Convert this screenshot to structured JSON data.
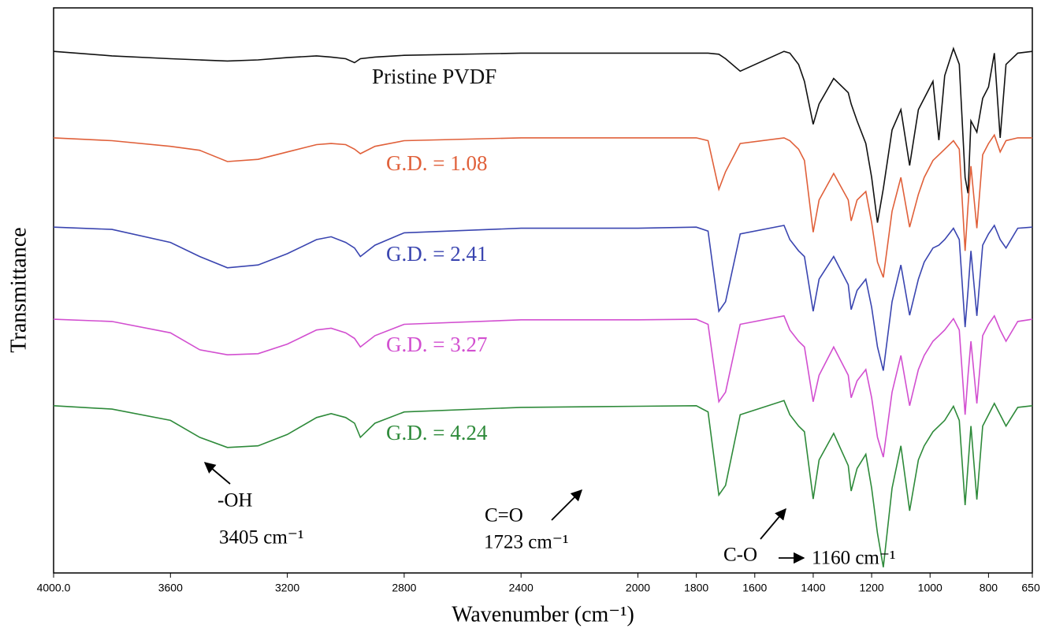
{
  "chart_data": {
    "type": "line",
    "xlabel": "Wavenumber (cm⁻¹)",
    "ylabel": "Transmittance",
    "xlim": [
      4000,
      650
    ],
    "ylim": [
      0,
      100
    ],
    "xticks": [
      {
        "value": 4000,
        "label": "4000.0"
      },
      3600,
      3200,
      2800,
      2400,
      2000,
      1800,
      1600,
      1400,
      1200,
      1000,
      800,
      {
        "value": 650,
        "label": "650."
      }
    ],
    "x": [
      4000,
      3800,
      3600,
      3500,
      3405,
      3300,
      3200,
      3100,
      3050,
      3000,
      2970,
      2950,
      2900,
      2800,
      2400,
      2000,
      1800,
      1760,
      1723,
      1700,
      1650,
      1500,
      1480,
      1450,
      1430,
      1400,
      1380,
      1330,
      1280,
      1270,
      1250,
      1220,
      1200,
      1180,
      1160,
      1130,
      1100,
      1070,
      1040,
      1020,
      990,
      970,
      950,
      920,
      900,
      880,
      870,
      860,
      840,
      820,
      800,
      780,
      760,
      740,
      700,
      650
    ],
    "series": [
      {
        "name": "Pristine PVDF",
        "color": "#111111",
        "values": [
          92.3,
          91.5,
          91,
          90.8,
          90.6,
          90.8,
          91.2,
          91.5,
          91.3,
          91,
          90.3,
          91,
          91.3,
          91.6,
          92,
          92,
          92,
          92,
          91.8,
          91,
          88.8,
          92.3,
          92,
          90,
          87,
          79.4,
          83,
          87.5,
          85,
          83,
          80,
          76,
          70,
          62,
          68,
          78.4,
          82,
          72.1,
          82,
          84,
          87,
          76.6,
          88,
          92.8,
          90,
          70,
          67.2,
          80,
          78,
          84,
          86,
          92,
          77,
          90,
          92,
          92.3
        ]
      },
      {
        "name": "G.D. = 1.08",
        "color": "#e0603a",
        "values": [
          77,
          76.5,
          75.5,
          74.8,
          72.8,
          73.2,
          74.5,
          75.8,
          76,
          75.8,
          75,
          74.2,
          75.5,
          76.5,
          77,
          77,
          77,
          76.5,
          67.9,
          71,
          76,
          77,
          76.5,
          75,
          73,
          60.3,
          66,
          70.7,
          66,
          62.3,
          66,
          67.5,
          62,
          55,
          52.3,
          64,
          70,
          61.2,
          67,
          70,
          73,
          74,
          75,
          76.5,
          75,
          57,
          65,
          72,
          61,
          74,
          76,
          77.5,
          74.5,
          76.5,
          77,
          77
        ]
      },
      {
        "name": "G.D. = 2.41",
        "color": "#3a45b0",
        "values": [
          61.2,
          60.8,
          58.5,
          56,
          54,
          54.5,
          56.5,
          59,
          59.5,
          58.5,
          57.5,
          56,
          58,
          60.2,
          61,
          61,
          61.2,
          60.5,
          46.3,
          48,
          60,
          61.5,
          59,
          57,
          56,
          46.3,
          52,
          56,
          51,
          46.6,
          50,
          52,
          47,
          40,
          35.8,
          48,
          54.5,
          45.6,
          52,
          55,
          57.5,
          58,
          59,
          61,
          59,
          43.5,
          50,
          57,
          45.5,
          58,
          60,
          61.5,
          59,
          57.5,
          61,
          61.2
        ]
      },
      {
        "name": "G.D. = 3.27",
        "color": "#d24fd0",
        "values": [
          44.9,
          44.5,
          42.5,
          39.5,
          38.6,
          38.8,
          40.5,
          43,
          43.3,
          42.5,
          41.5,
          40,
          42,
          44,
          44.8,
          44.8,
          44.9,
          44,
          30.3,
          32,
          44,
          45.5,
          43,
          41,
          40,
          30.3,
          35,
          40,
          35,
          31,
          34,
          36,
          31,
          24,
          20.5,
          32,
          38.5,
          29.6,
          36,
          38.5,
          41,
          42,
          43,
          45,
          43,
          28,
          35,
          41,
          30,
          42,
          44,
          45.5,
          43,
          41,
          44.5,
          44.9
        ]
      },
      {
        "name": "G.D. = 4.24",
        "color": "#2e8a3a",
        "values": [
          29.6,
          29,
          27,
          24,
          22.2,
          22.5,
          24.5,
          27.5,
          28.2,
          27.5,
          26.5,
          24,
          26.5,
          28.5,
          29.3,
          29.5,
          29.6,
          28.5,
          13.8,
          15.5,
          28,
          30.5,
          28,
          26,
          25,
          13.1,
          20,
          24.7,
          19,
          14.5,
          18.5,
          21,
          15,
          7,
          1,
          15,
          22.5,
          11,
          20,
          22.5,
          25,
          26,
          27,
          29.5,
          27,
          12,
          19,
          26,
          13,
          26,
          28,
          30,
          28,
          26,
          29.3,
          29.6
        ]
      }
    ],
    "annotations": [
      "-OH",
      "3405 cm⁻¹",
      "C=O",
      "1723 cm⁻¹",
      "C-O",
      "1160 cm⁻¹"
    ]
  }
}
